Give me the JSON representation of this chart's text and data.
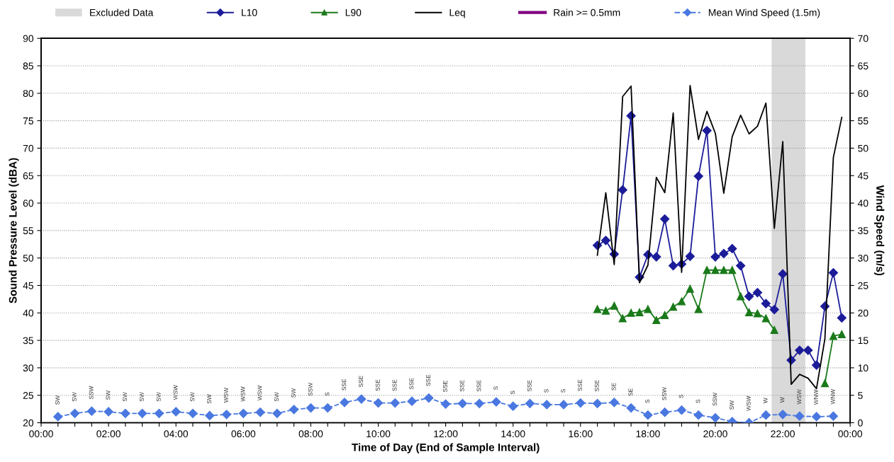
{
  "chart_data": {
    "type": "line",
    "xlabel": "Time of Day (End of Sample Interval)",
    "ylabel": "Sound Pressure Level (dBA)",
    "y2label": "Wind Speed (m/s)",
    "xlim": [
      0,
      24
    ],
    "ylim": [
      20,
      90
    ],
    "y2lim": [
      0,
      70
    ],
    "xticks": [
      {
        "value": 0,
        "label": "00:00"
      },
      {
        "value": 0.5,
        "label": null
      },
      {
        "value": 1,
        "label": null
      },
      {
        "value": 1.5,
        "label": null
      },
      {
        "value": 2,
        "label": "02:00"
      },
      {
        "value": 2.5,
        "label": null
      },
      {
        "value": 3,
        "label": null
      },
      {
        "value": 3.5,
        "label": null
      },
      {
        "value": 4,
        "label": "04:00"
      },
      {
        "value": 4.5,
        "label": null
      },
      {
        "value": 5,
        "label": null
      },
      {
        "value": 5.5,
        "label": null
      },
      {
        "value": 6,
        "label": "06:00"
      },
      {
        "value": 6.5,
        "label": null
      },
      {
        "value": 7,
        "label": null
      },
      {
        "value": 7.5,
        "label": null
      },
      {
        "value": 8,
        "label": "08:00"
      },
      {
        "value": 8.5,
        "label": null
      },
      {
        "value": 9,
        "label": null
      },
      {
        "value": 9.5,
        "label": null
      },
      {
        "value": 10,
        "label": "10:00"
      },
      {
        "value": 10.5,
        "label": null
      },
      {
        "value": 11,
        "label": null
      },
      {
        "value": 11.5,
        "label": null
      },
      {
        "value": 12,
        "label": "12:00"
      },
      {
        "value": 12.5,
        "label": null
      },
      {
        "value": 13,
        "label": null
      },
      {
        "value": 13.5,
        "label": null
      },
      {
        "value": 14,
        "label": "14:00"
      },
      {
        "value": 14.5,
        "label": null
      },
      {
        "value": 15,
        "label": null
      },
      {
        "value": 15.5,
        "label": null
      },
      {
        "value": 16,
        "label": "16:00"
      },
      {
        "value": 16.5,
        "label": null
      },
      {
        "value": 17,
        "label": null
      },
      {
        "value": 17.5,
        "label": null
      },
      {
        "value": 18,
        "label": "18:00"
      },
      {
        "value": 18.5,
        "label": null
      },
      {
        "value": 19,
        "label": null
      },
      {
        "value": 19.5,
        "label": null
      },
      {
        "value": 20,
        "label": "20:00"
      },
      {
        "value": 20.5,
        "label": null
      },
      {
        "value": 21,
        "label": null
      },
      {
        "value": 21.5,
        "label": null
      },
      {
        "value": 22,
        "label": "22:00"
      },
      {
        "value": 22.5,
        "label": null
      },
      {
        "value": 23,
        "label": null
      },
      {
        "value": 23.5,
        "label": null
      },
      {
        "value": 24,
        "label": "00:00"
      }
    ],
    "yticks": [
      20,
      25,
      30,
      35,
      40,
      45,
      50,
      55,
      60,
      65,
      70,
      75,
      80,
      85,
      90
    ],
    "y2ticks": [
      0,
      5,
      10,
      15,
      20,
      25,
      30,
      35,
      40,
      45,
      50,
      55,
      60,
      65,
      70
    ],
    "grid": "y",
    "legend": "top",
    "bands": [
      {
        "axis": "x",
        "from": 21.67,
        "to": 22.67,
        "label": "Excluded Data",
        "color": "#d9d9d9"
      }
    ],
    "x": [
      16.5,
      16.75,
      17,
      17.25,
      17.5,
      17.75,
      18,
      18.25,
      18.5,
      18.75,
      19,
      19.25,
      19.5,
      19.75,
      20,
      20.25,
      20.5,
      20.75,
      21,
      21.25,
      21.5,
      21.75,
      22,
      22.25,
      22.5,
      22.75,
      23,
      23.25,
      23.5,
      23.75
    ],
    "series": [
      {
        "name": "L10",
        "color": "#1c1c9a",
        "marker": "diamond",
        "line_style": "solid",
        "values": [
          52.3,
          53.2,
          50.7,
          62.4,
          75.9,
          46.5,
          50.6,
          50.2,
          57.1,
          48.6,
          48.9,
          50.3,
          64.9,
          73.2,
          50.2,
          50.8,
          51.7,
          48.6,
          43.0,
          43.7,
          41.7,
          40.6,
          47.1,
          31.4,
          33.2,
          33.2,
          30.5,
          41.2,
          47.3,
          39.1
        ]
      },
      {
        "name": "L90",
        "color": "#1a7a1a",
        "marker": "triangle",
        "line_style": "solid",
        "values": [
          40.7,
          40.4,
          41.3,
          39.0,
          40.0,
          40.1,
          40.7,
          38.7,
          39.6,
          41.1,
          42.1,
          44.4,
          40.7,
          47.8,
          47.8,
          47.8,
          47.8,
          43.0,
          40.1,
          39.9,
          39.0,
          36.9,
          null,
          null,
          null,
          null,
          null,
          27.2,
          35.8,
          36.1
        ]
      },
      {
        "name": "Leq",
        "color": "#000000",
        "marker": "none",
        "line_style": "solid",
        "values": [
          50.5,
          61.9,
          48.8,
          79.4,
          81.3,
          45.5,
          48.7,
          64.7,
          61.9,
          76.4,
          47.4,
          81.4,
          71.6,
          76.7,
          72.7,
          61.8,
          72.1,
          76.0,
          72.6,
          74.0,
          78.2,
          55.4,
          71.2,
          27.0,
          28.8,
          28.1,
          26.2,
          35.3,
          68.3,
          75.6
        ]
      },
      {
        "name": "Rain >= 0.5mm",
        "type": "bar",
        "color": "#800080",
        "values": [
          null,
          null,
          null,
          null,
          null,
          null,
          null,
          null,
          null,
          null,
          null,
          null,
          null,
          null,
          null,
          null,
          null,
          null,
          null,
          null,
          null,
          null,
          null,
          null,
          null,
          null,
          null,
          null,
          null,
          null
        ]
      },
      {
        "name": "Mean Wind Speed (1.5m)",
        "color": "#4a78e0",
        "axis": "y2",
        "marker": "diamond",
        "line_style": "dashed",
        "x": [
          0.5,
          1,
          1.5,
          2,
          2.5,
          3,
          3.5,
          4,
          4.5,
          5,
          5.5,
          6,
          6.5,
          7,
          7.5,
          8,
          8.5,
          9,
          9.5,
          10,
          10.5,
          11,
          11.5,
          12,
          12.5,
          13,
          13.5,
          14,
          14.5,
          15,
          15.5,
          16,
          16.5,
          17,
          17.5,
          18,
          18.5,
          19,
          19.5,
          20,
          20.5,
          21,
          21.5,
          22,
          22.5,
          23,
          23.5
        ],
        "values": [
          1.1,
          1.7,
          2.1,
          2.0,
          1.7,
          1.7,
          1.7,
          2.0,
          1.7,
          1.3,
          1.5,
          1.7,
          1.9,
          1.7,
          2.4,
          2.7,
          2.7,
          3.7,
          4.3,
          3.6,
          3.6,
          3.9,
          4.5,
          3.4,
          3.5,
          3.5,
          3.8,
          3.0,
          3.5,
          3.3,
          3.3,
          3.6,
          3.5,
          3.7,
          2.7,
          1.4,
          1.9,
          2.3,
          1.4,
          0.9,
          0.2,
          0.0,
          1.4,
          1.5,
          1.2,
          1.1,
          1.2
        ],
        "value_labels": [
          "SW",
          "SW",
          "SSW",
          "SW",
          "SW",
          "SW",
          "SW",
          "WSW",
          "SW",
          "SW",
          "WSW",
          "WSW",
          "WSW",
          "SW",
          "SW",
          "SSW",
          "S",
          "SSE",
          "SSE",
          "SSE",
          "SSE",
          "SSE",
          "SSE",
          "SSE",
          "SSE",
          "SSE",
          "S",
          "S",
          "SSE",
          "S",
          "S",
          "SSE",
          "SSE",
          "SE",
          "SE",
          "S",
          "SSW",
          "S",
          "S",
          "SSW",
          "SW",
          "WSW",
          "W",
          "W",
          "WSW",
          "WNW",
          "WNW"
        ]
      }
    ]
  }
}
